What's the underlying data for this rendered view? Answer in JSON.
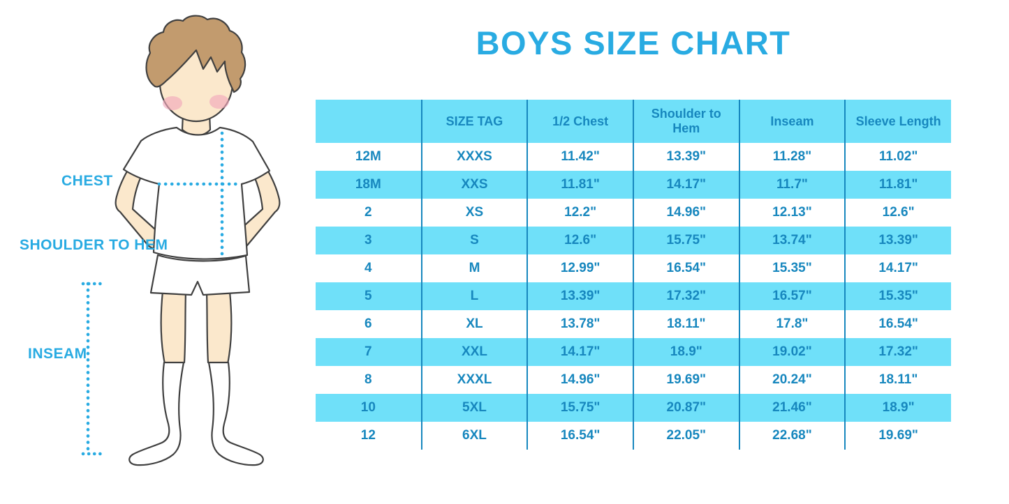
{
  "page": {
    "title": "BOYS SIZE CHART"
  },
  "figure": {
    "chest_label": "CHEST",
    "shoulder_to_hem_label": "SHOULDER TO HEM",
    "inseam_label": "INSEAM"
  },
  "colors": {
    "accent_blue": "#29ABE2",
    "table_text_blue": "#1787BE",
    "row_cyan": "#6FE0F9",
    "row_white": "#FFFFFF",
    "hair_brown": "#C29B6E",
    "skin": "#FBE8CC",
    "blush_pink": "#F1A9BB",
    "outline": "#404040"
  },
  "chart_data": {
    "type": "table",
    "title": "BOYS SIZE CHART",
    "columns": [
      "",
      "SIZE TAG",
      "1/2 Chest",
      "Shoulder to Hem",
      "Inseam",
      "Sleeve Length"
    ],
    "rows": [
      [
        "12M",
        "XXXS",
        "11.42\"",
        "13.39\"",
        "11.28\"",
        "11.02\""
      ],
      [
        "18M",
        "XXS",
        "11.81\"",
        "14.17\"",
        "11.7\"",
        "11.81\""
      ],
      [
        "2",
        "XS",
        "12.2\"",
        "14.96\"",
        "12.13\"",
        "12.6\""
      ],
      [
        "3",
        "S",
        "12.6\"",
        "15.75\"",
        "13.74\"",
        "13.39\""
      ],
      [
        "4",
        "M",
        "12.99\"",
        "16.54\"",
        "15.35\"",
        "14.17\""
      ],
      [
        "5",
        "L",
        "13.39\"",
        "17.32\"",
        "16.57\"",
        "15.35\""
      ],
      [
        "6",
        "XL",
        "13.78\"",
        "18.11\"",
        "17.8\"",
        "16.54\""
      ],
      [
        "7",
        "XXL",
        "14.17\"",
        "18.9\"",
        "19.02\"",
        "17.32\""
      ],
      [
        "8",
        "XXXL",
        "14.96\"",
        "19.69\"",
        "20.24\"",
        "18.11\""
      ],
      [
        "10",
        "5XL",
        "15.75\"",
        "20.87\"",
        "21.46\"",
        "18.9\""
      ],
      [
        "12",
        "6XL",
        "16.54\"",
        "22.05\"",
        "22.68\"",
        "19.69\""
      ]
    ]
  }
}
